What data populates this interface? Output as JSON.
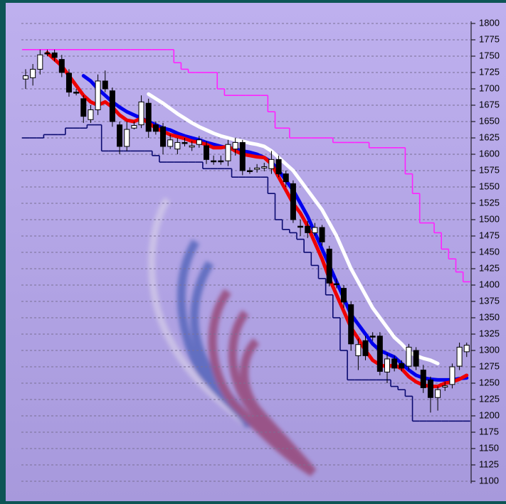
{
  "chart_data": {
    "type": "candlestick",
    "ylim": [
      1100,
      1800
    ],
    "yticks": [
      1100,
      1125,
      1150,
      1175,
      1200,
      1225,
      1250,
      1275,
      1300,
      1325,
      1350,
      1375,
      1400,
      1425,
      1450,
      1475,
      1500,
      1525,
      1550,
      1575,
      1600,
      1625,
      1650,
      1675,
      1700,
      1725,
      1750,
      1775,
      1800
    ],
    "grid": true,
    "open": [
      1715,
      1717,
      1730,
      1755,
      1755,
      1745,
      1724,
      1695,
      1685,
      1653,
      1668,
      1712,
      1697,
      1645,
      1612,
      1640,
      1645,
      1678,
      1645,
      1642,
      1612,
      1608,
      1618,
      1611,
      1615,
      1613,
      1590,
      1590,
      1590,
      1608,
      1618,
      1575,
      1577,
      1579,
      1578,
      1592,
      1570,
      1555,
      1490,
      1490,
      1480,
      1488,
      1455,
      1402,
      1395,
      1370,
      1292,
      1315,
      1322,
      1322,
      1267,
      1287,
      1280,
      1276,
      1300,
      1270,
      1255,
      1228,
      1244,
      1248,
      1276,
      1298
    ],
    "high": [
      1730,
      1738,
      1760,
      1760,
      1760,
      1752,
      1730,
      1700,
      1690,
      1675,
      1722,
      1728,
      1702,
      1650,
      1650,
      1650,
      1690,
      1685,
      1650,
      1648,
      1630,
      1625,
      1625,
      1620,
      1628,
      1620,
      1598,
      1598,
      1622,
      1625,
      1622,
      1580,
      1585,
      1587,
      1605,
      1598,
      1575,
      1560,
      1500,
      1498,
      1495,
      1492,
      1460,
      1410,
      1400,
      1375,
      1318,
      1322,
      1328,
      1328,
      1295,
      1292,
      1285,
      1310,
      1305,
      1278,
      1260,
      1245,
      1252,
      1280,
      1312,
      1312
    ],
    "low": [
      1700,
      1705,
      1722,
      1750,
      1742,
      1718,
      1688,
      1690,
      1648,
      1648,
      1660,
      1695,
      1642,
      1600,
      1605,
      1638,
      1640,
      1625,
      1630,
      1600,
      1608,
      1600,
      1612,
      1605,
      1610,
      1585,
      1584,
      1584,
      1582,
      1598,
      1568,
      1570,
      1572,
      1574,
      1570,
      1565,
      1550,
      1495,
      1475,
      1472,
      1475,
      1460,
      1398,
      1395,
      1365,
      1300,
      1270,
      1285,
      1315,
      1262,
      1250,
      1268,
      1268,
      1270,
      1270,
      1235,
      1205,
      1208,
      1238,
      1242,
      1270,
      1290
    ],
    "close": [
      1720,
      1730,
      1752,
      1755,
      1748,
      1725,
      1695,
      1695,
      1658,
      1668,
      1712,
      1700,
      1650,
      1612,
      1638,
      1644,
      1680,
      1635,
      1635,
      1612,
      1622,
      1618,
      1618,
      1613,
      1622,
      1592,
      1590,
      1590,
      1615,
      1618,
      1575,
      1575,
      1579,
      1581,
      1592,
      1570,
      1558,
      1500,
      1490,
      1480,
      1488,
      1466,
      1403,
      1402,
      1374,
      1310,
      1309,
      1292,
      1322,
      1268,
      1287,
      1273,
      1273,
      1305,
      1276,
      1243,
      1228,
      1240,
      1246,
      1275,
      1305,
      1308
    ],
    "lines": [
      {
        "color": "#ff22ff",
        "step": true,
        "values": [
          1760,
          1760,
          1760,
          1760,
          1760,
          1760,
          1760,
          1760,
          1760,
          1760,
          1760,
          1760,
          1760,
          1760,
          1760,
          1760,
          1760,
          1760,
          1760,
          1760,
          1760,
          1740,
          1730,
          1725,
          1725,
          1725,
          1725,
          1700,
          1690,
          1690,
          1690,
          1690,
          1690,
          1690,
          1665,
          1640,
          1640,
          1625,
          1625,
          1625,
          1625,
          1625,
          1625,
          1618,
          1618,
          1618,
          1618,
          1618,
          1610,
          1610,
          1610,
          1610,
          1610,
          1570,
          1540,
          1495,
          1495,
          1480,
          1455,
          1440,
          1420,
          1405
        ]
      },
      {
        "color": "#0a0a70",
        "step": true,
        "values": [
          1625,
          1625,
          1625,
          1630,
          1630,
          1630,
          1640,
          1640,
          1640,
          1645,
          1645,
          1605,
          1605,
          1605,
          1605,
          1605,
          1605,
          1605,
          1598,
          1588,
          1588,
          1588,
          1588,
          1588,
          1588,
          1578,
          1578,
          1578,
          1578,
          1565,
          1565,
          1565,
          1565,
          1565,
          1540,
          1500,
          1485,
          1480,
          1470,
          1450,
          1430,
          1410,
          1385,
          1350,
          1300,
          1255,
          1255,
          1255,
          1255,
          1255,
          1255,
          1245,
          1240,
          1230,
          1192,
          1192,
          1192,
          1192,
          1192,
          1192,
          1192,
          1192
        ]
      },
      {
        "color": "#ffffff",
        "step": false,
        "values": [
          null,
          null,
          null,
          null,
          null,
          null,
          null,
          null,
          null,
          null,
          null,
          null,
          null,
          null,
          null,
          null,
          null,
          1692,
          1685,
          1678,
          1670,
          1662,
          1655,
          1648,
          1642,
          1637,
          1632,
          1628,
          1625,
          1622,
          1620,
          1617,
          1615,
          1612,
          1605,
          1595,
          1585,
          1575,
          1560,
          1545,
          1530,
          1515,
          1495,
          1475,
          1450,
          1425,
          1405,
          1385,
          1365,
          1350,
          1335,
          1320,
          1310,
          1298,
          1292,
          1288,
          1285,
          1280,
          null,
          null,
          null,
          null
        ]
      },
      {
        "color": "#0000ee",
        "step": false,
        "values": [
          null,
          null,
          null,
          null,
          null,
          null,
          null,
          null,
          1720,
          1712,
          1700,
          1690,
          1680,
          1672,
          1665,
          1660,
          1655,
          1650,
          1645,
          1640,
          1637,
          1632,
          1628,
          1625,
          1622,
          1618,
          1615,
          1612,
          1610,
          1608,
          1605,
          1603,
          1600,
          1595,
          1588,
          1575,
          1560,
          1545,
          1525,
          1505,
          1480,
          1455,
          1430,
          1405,
          1380,
          1355,
          1340,
          1325,
          1310,
          1300,
          1295,
          1290,
          1280,
          1270,
          1262,
          1258,
          1256,
          1255,
          1255,
          1255,
          1257,
          1258
        ]
      },
      {
        "color": "#ee0000",
        "step": false,
        "values": [
          null,
          null,
          null,
          1755,
          1745,
          1735,
          1720,
          1705,
          1690,
          1680,
          1675,
          1680,
          1672,
          1660,
          1652,
          1650,
          1655,
          1648,
          1640,
          1635,
          1630,
          1627,
          1624,
          1620,
          1618,
          1615,
          1610,
          1610,
          1612,
          1605,
          1600,
          1598,
          1596,
          1595,
          1585,
          1565,
          1545,
          1525,
          1510,
          1490,
          1465,
          1440,
          1410,
          1385,
          1360,
          1335,
          1318,
          1300,
          1285,
          1278,
          1275,
          1278,
          1272,
          1260,
          1252,
          1247,
          1245,
          1245,
          1250,
          1252,
          1256,
          1262
        ]
      }
    ]
  }
}
